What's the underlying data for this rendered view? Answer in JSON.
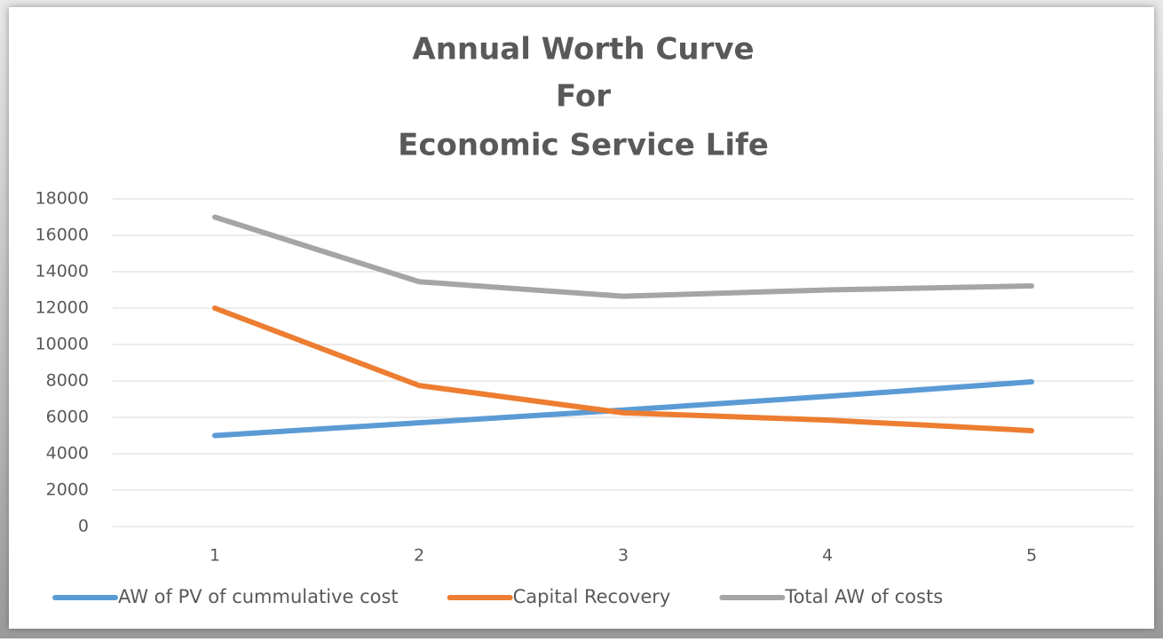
{
  "chart_data": {
    "type": "line",
    "title": [
      "Annual Worth Curve",
      "For",
      "Economic Service Life"
    ],
    "categories": [
      1,
      2,
      3,
      4,
      5
    ],
    "series": [
      {
        "name": "AW of PV of cummulative cost",
        "color": "#5b9bd5",
        "values": [
          5000,
          5700,
          6400,
          7150,
          7950
        ]
      },
      {
        "name": "Capital Recovery",
        "color": "#ed7d31",
        "values": [
          12000,
          7750,
          6250,
          5850,
          5270
        ]
      },
      {
        "name": "Total AW of costs",
        "color": "#a5a5a5",
        "values": [
          17000,
          13450,
          12650,
          13000,
          13220
        ]
      }
    ],
    "ylim": [
      0,
      18000
    ],
    "yticks": [
      0,
      2000,
      4000,
      6000,
      8000,
      10000,
      12000,
      14000,
      16000,
      18000
    ],
    "grid": true,
    "legend": "bottom"
  }
}
